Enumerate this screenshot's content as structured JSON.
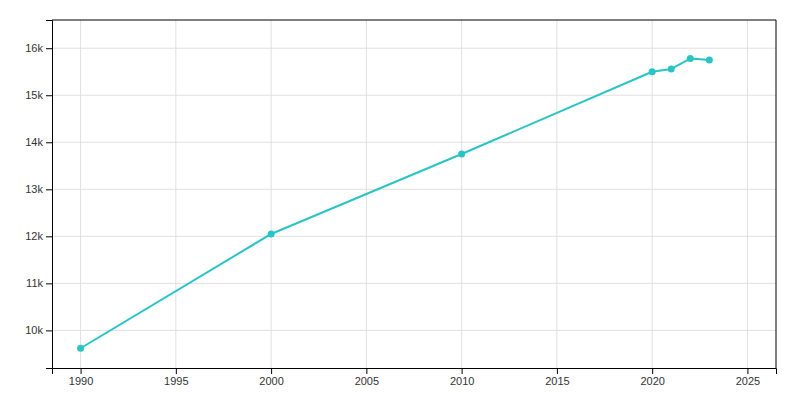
{
  "chart_data": {
    "type": "line",
    "x": [
      1990,
      2000,
      2010,
      2020,
      2021,
      2022,
      2023
    ],
    "values": [
      9620,
      12050,
      13750,
      15500,
      15560,
      15780,
      15750
    ],
    "color": "#2ac4c4",
    "marker": "circle",
    "xlim": [
      1988.5,
      2026.5
    ],
    "xticks": [
      1990,
      1995,
      2000,
      2005,
      2010,
      2015,
      2020,
      2025
    ],
    "ylim": [
      9200,
      16600
    ],
    "yticks": [
      {
        "value": 10000,
        "label": "10k"
      },
      {
        "value": 11000,
        "label": "11k"
      },
      {
        "value": 12000,
        "label": "12k"
      },
      {
        "value": 13000,
        "label": "13k"
      },
      {
        "value": 14000,
        "label": "14k"
      },
      {
        "value": 15000,
        "label": "15k"
      },
      {
        "value": 16000,
        "label": "16k"
      }
    ],
    "grid": true
  }
}
